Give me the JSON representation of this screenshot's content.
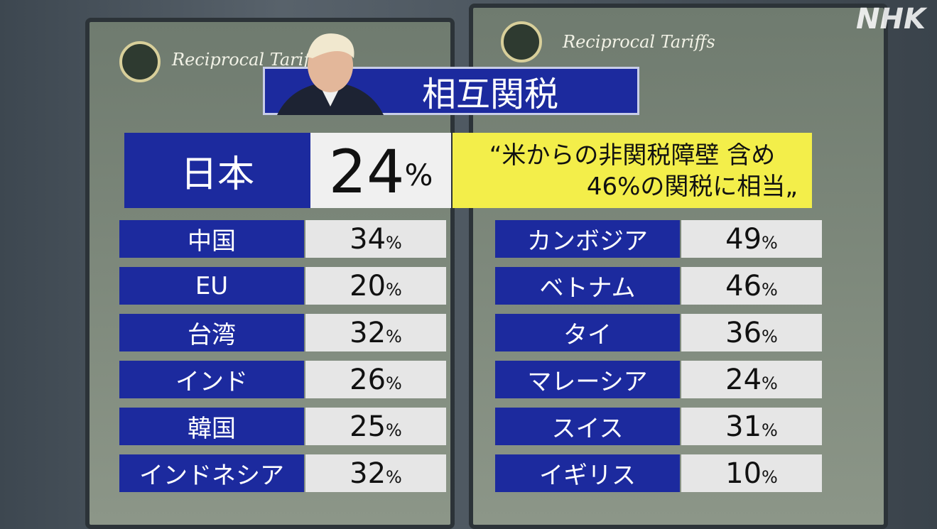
{
  "watermark": "NHK",
  "background": {
    "boards": [
      "Reciprocal Tariffs",
      "Reciprocal Tariffs"
    ]
  },
  "title": "相互関税",
  "unit": "%",
  "featured": {
    "country": "日本",
    "rate": 24,
    "quote": [
      "“米からの非関税障壁 含め",
      "46%の関税に相当„"
    ]
  },
  "table": {
    "left": [
      [
        "中国",
        34
      ],
      [
        "EU",
        20
      ],
      [
        "台湾",
        32
      ],
      [
        "インド",
        26
      ],
      [
        "韓国",
        25
      ],
      [
        "インドネシア",
        32
      ]
    ],
    "right": [
      [
        "カンボジア",
        49
      ],
      [
        "ベトナム",
        46
      ],
      [
        "タイ",
        36
      ],
      [
        "マレーシア",
        24
      ],
      [
        "スイス",
        31
      ],
      [
        "イギリス",
        10
      ]
    ]
  }
}
